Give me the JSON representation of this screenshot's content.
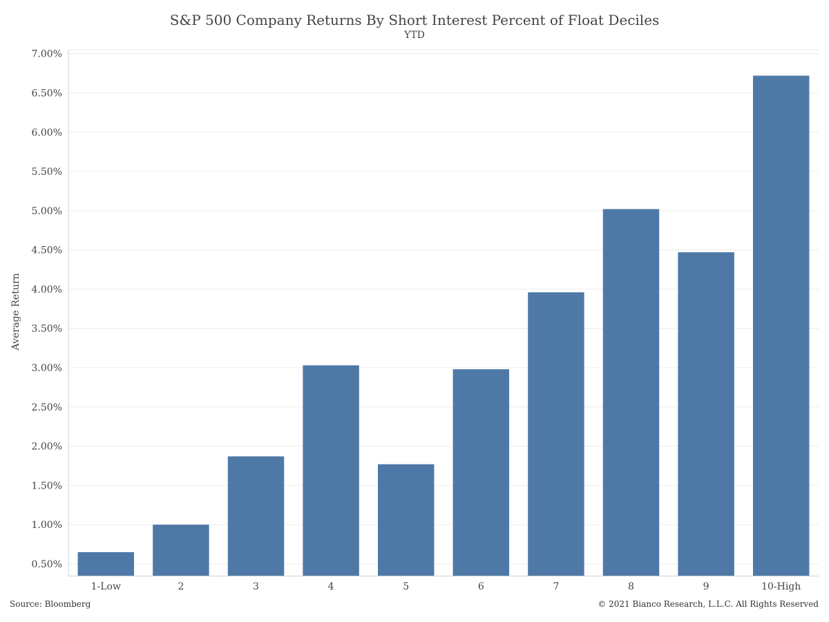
{
  "chart_data": {
    "type": "bar",
    "title": "S&P 500 Company Returns By Short Interest Percent of Float Deciles",
    "subtitle": "YTD",
    "xlabel": "",
    "ylabel": "Average Return",
    "categories": [
      "1-Low",
      "2",
      "3",
      "4",
      "5",
      "6",
      "7",
      "8",
      "9",
      "10-High"
    ],
    "values": [
      0.65,
      1.0,
      1.87,
      3.03,
      1.77,
      2.98,
      3.96,
      5.02,
      4.47,
      6.72
    ],
    "y_ticks": [
      "0.50%",
      "1.00%",
      "1.50%",
      "2.00%",
      "2.50%",
      "3.00%",
      "3.50%",
      "4.00%",
      "4.50%",
      "5.00%",
      "5.50%",
      "6.00%",
      "6.50%",
      "7.00%"
    ],
    "y_tick_values": [
      0.5,
      1.0,
      1.5,
      2.0,
      2.5,
      3.0,
      3.5,
      4.0,
      4.5,
      5.0,
      5.5,
      6.0,
      6.5,
      7.0
    ],
    "ylim": [
      0.35,
      7.05
    ],
    "grid": true,
    "bar_color": "#4e79a7"
  },
  "footer": {
    "source": "Source: Bloomberg",
    "copyright": "© 2021 Bianco Research, L.L.C. All Rights Reserved"
  }
}
